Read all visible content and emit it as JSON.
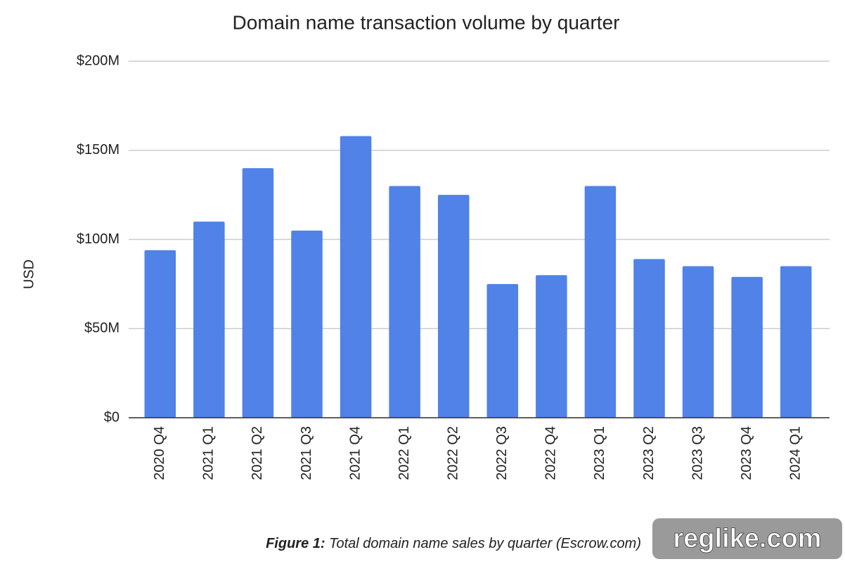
{
  "chart_data": {
    "type": "bar",
    "title": "Domain name transaction volume by quarter",
    "y_label": "USD",
    "categories": [
      "2020 Q4",
      "2021 Q1",
      "2021 Q2",
      "2021 Q3",
      "2021 Q4",
      "2022 Q1",
      "2022 Q2",
      "2022 Q3",
      "2022 Q4",
      "2023 Q1",
      "2023 Q2",
      "2023 Q3",
      "2023 Q4",
      "2024 Q1"
    ],
    "values": [
      94000000,
      110000000,
      140000000,
      105000000,
      158000000,
      130000000,
      125000000,
      75000000,
      80000000,
      130000000,
      89000000,
      85000000,
      79000000,
      85000000
    ],
    "color": "#5082e8",
    "ylim": [
      0,
      200000000
    ],
    "yticks": [
      {
        "value": 0,
        "label": "$0"
      },
      {
        "value": 50000000,
        "label": "$50M"
      },
      {
        "value": 100000000,
        "label": "$100M"
      },
      {
        "value": 150000000,
        "label": "$150M"
      },
      {
        "value": 200000000,
        "label": "$200M"
      }
    ],
    "grid": true
  },
  "caption": {
    "label": "Figure 1:",
    "text": "Total domain name sales by quarter (Escrow.com)"
  },
  "watermark": "reglike.com"
}
